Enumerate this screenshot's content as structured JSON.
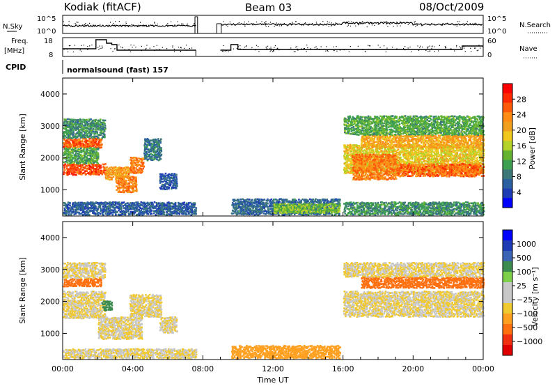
{
  "header": {
    "station": "Kodiak (fitACF)",
    "beam": "Beam 03",
    "date": "08/Oct/2009"
  },
  "top_panels": {
    "nsky_label": "N.Sky",
    "nsky_ticks": [
      "10^5",
      "10^0"
    ],
    "nsearch_label": "N.Search",
    "nsearch_ticks": [
      "10^5",
      "10^0"
    ],
    "freq_label_1": "Freq.",
    "freq_label_2": "[MHz]",
    "freq_ticks": [
      "18",
      "8"
    ],
    "nave_label": "Nave",
    "nave_ticks": [
      "60",
      "0"
    ],
    "cpid_label": "CPID",
    "cpid_text": "normalsound (fast) 157"
  },
  "colors": {
    "power": [
      "#0000ff",
      "#1e3cb4",
      "#2a5fa0",
      "#3c7878",
      "#3ca050",
      "#64b432",
      "#b4d228",
      "#f0c81e",
      "#f0a01e",
      "#ff8c14",
      "#ff5a0a",
      "#ff2800",
      "#ff0000"
    ],
    "velocity": [
      "#e00000",
      "#f03010",
      "#ff7010",
      "#ffa020",
      "#f0c830",
      "#c8c8c8",
      "#c8c8c8",
      "#7cd04a",
      "#3c8c50",
      "#3c64b4",
      "#1e3cb4",
      "#0000ff"
    ]
  },
  "chart_data": [
    {
      "type": "heatmap",
      "name": "power",
      "title": "",
      "xlabel": "",
      "ylabel": "Slant Range [km]",
      "xlim": [
        0,
        24
      ],
      "ylim": [
        180,
        4500
      ],
      "x_ticks": [
        "00:00",
        "04:00",
        "08:00",
        "12:00",
        "16:00",
        "20:00",
        "00:00"
      ],
      "y_ticks": [
        1000,
        2000,
        3000,
        4000
      ],
      "colorbar": {
        "label": "Power [dB]",
        "ticks": [
          "28",
          "24",
          "20",
          "16",
          "12",
          "8",
          "4"
        ],
        "range": [
          0,
          32
        ]
      },
      "regions": [
        {
          "t": [
            0,
            2.2
          ],
          "r": [
            2300,
            2600
          ],
          "v": 26
        },
        {
          "t": [
            0,
            2.4
          ],
          "r": [
            1450,
            1800
          ],
          "v": 27
        },
        {
          "t": [
            0,
            2.0
          ],
          "r": [
            1800,
            2300
          ],
          "v": 12
        },
        {
          "t": [
            0,
            2.4
          ],
          "r": [
            2600,
            3200
          ],
          "v": 10
        },
        {
          "t": [
            2.4,
            3.8
          ],
          "r": [
            1300,
            1700
          ],
          "v": 22
        },
        {
          "t": [
            3.0,
            4.2
          ],
          "r": [
            900,
            1400
          ],
          "v": 24
        },
        {
          "t": [
            3.8,
            4.6
          ],
          "r": [
            1500,
            2000
          ],
          "v": 24
        },
        {
          "t": [
            4.6,
            5.6
          ],
          "r": [
            1900,
            2600
          ],
          "v": 8
        },
        {
          "t": [
            5.5,
            6.5
          ],
          "r": [
            1000,
            1500
          ],
          "v": 6
        },
        {
          "t": [
            0,
            7.6
          ],
          "r": [
            200,
            600
          ],
          "v": 6
        },
        {
          "t": [
            9.6,
            15.8
          ],
          "r": [
            200,
            700
          ],
          "v": 7
        },
        {
          "t": [
            12.0,
            15.8
          ],
          "r": [
            250,
            550
          ],
          "v": 14
        },
        {
          "t": [
            16.0,
            24.0
          ],
          "r": [
            1500,
            2400
          ],
          "v": 18
        },
        {
          "t": [
            16.5,
            19.0
          ],
          "r": [
            1300,
            2100
          ],
          "v": 24
        },
        {
          "t": [
            19.0,
            24.0
          ],
          "r": [
            1400,
            1800
          ],
          "v": 25
        },
        {
          "t": [
            17.0,
            24.0
          ],
          "r": [
            2300,
            2700
          ],
          "v": 21
        },
        {
          "t": [
            16.0,
            24.0
          ],
          "r": [
            2700,
            3300
          ],
          "v": 12
        },
        {
          "t": [
            16.0,
            24.0
          ],
          "r": [
            200,
            600
          ],
          "v": 10
        }
      ]
    },
    {
      "type": "heatmap",
      "name": "velocity",
      "title": "",
      "xlabel": "Time UT",
      "ylabel": "Slant Range [km]",
      "xlim": [
        0,
        24
      ],
      "ylim": [
        180,
        4500
      ],
      "x_ticks": [
        "00:00",
        "04:00",
        "08:00",
        "12:00",
        "16:00",
        "20:00",
        "00:00"
      ],
      "y_ticks": [
        1000,
        2000,
        3000,
        4000
      ],
      "colorbar": {
        "label": "Velocity [m s⁻¹]",
        "ticks": [
          "1000",
          "500",
          "100",
          "25",
          "−25",
          "−100",
          "−500",
          "−1000"
        ],
        "range": [
          -1200,
          1200
        ]
      },
      "regions": [
        {
          "t": [
            0,
            2.2
          ],
          "r": [
            2450,
            2700
          ],
          "v": -300
        },
        {
          "t": [
            0,
            2.4
          ],
          "r": [
            1450,
            2300
          ],
          "v": 0
        },
        {
          "t": [
            2.0,
            4.5
          ],
          "r": [
            800,
            1500
          ],
          "v": 0
        },
        {
          "t": [
            3.8,
            5.6
          ],
          "r": [
            1500,
            2200
          ],
          "v": 0
        },
        {
          "t": [
            2.2,
            2.8
          ],
          "r": [
            1700,
            2000
          ],
          "v": 200
        },
        {
          "t": [
            0,
            2.4
          ],
          "r": [
            2700,
            3200
          ],
          "v": 0
        },
        {
          "t": [
            5.5,
            6.5
          ],
          "r": [
            1000,
            1500
          ],
          "v": 0
        },
        {
          "t": [
            9.6,
            15.8
          ],
          "r": [
            200,
            600
          ],
          "v": -60
        },
        {
          "t": [
            16.0,
            24.0
          ],
          "r": [
            1500,
            2300
          ],
          "v": 0
        },
        {
          "t": [
            17.0,
            24.0
          ],
          "r": [
            2400,
            2750
          ],
          "v": -250
        },
        {
          "t": [
            16.0,
            24.0
          ],
          "r": [
            2750,
            3200
          ],
          "v": 0
        },
        {
          "t": [
            0,
            7.6
          ],
          "r": [
            200,
            500
          ],
          "v": 0
        }
      ]
    }
  ]
}
